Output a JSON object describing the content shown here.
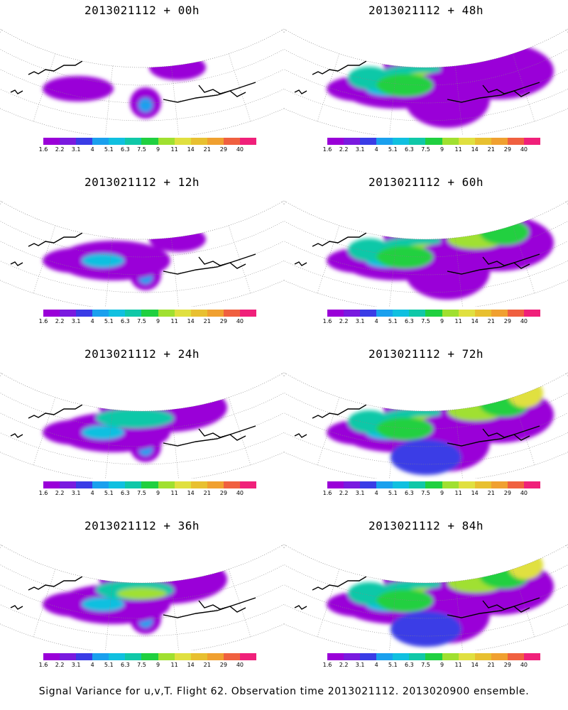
{
  "panels": [
    {
      "title": "2013021112 + 00h",
      "intensity": 0.1
    },
    {
      "title": "2013021112 + 48h",
      "intensity": 0.7
    },
    {
      "title": "2013021112 + 12h",
      "intensity": 0.25
    },
    {
      "title": "2013021112 + 60h",
      "intensity": 0.8
    },
    {
      "title": "2013021112 + 24h",
      "intensity": 0.45
    },
    {
      "title": "2013021112 + 72h",
      "intensity": 0.9
    },
    {
      "title": "2013021112 + 36h",
      "intensity": 0.55
    },
    {
      "title": "2013021112 + 84h",
      "intensity": 0.95
    }
  ],
  "colorbar": {
    "labels": [
      "1.6",
      "2.2",
      "3.1",
      "4",
      "5.1",
      "6.3",
      "7.5",
      "9",
      "11",
      "14",
      "21",
      "29",
      "40"
    ],
    "colors": [
      "#9a00d8",
      "#7a1adf",
      "#3a3ce6",
      "#1aa0ee",
      "#10c0e0",
      "#10c8a8",
      "#20d040",
      "#a0e030",
      "#e0e040",
      "#e8c030",
      "#f0a030",
      "#f06040",
      "#f0207a"
    ]
  },
  "footer": "Signal Variance for u,v,T. Flight 62. Observation time 2013021112. 2013020900 ensemble."
}
